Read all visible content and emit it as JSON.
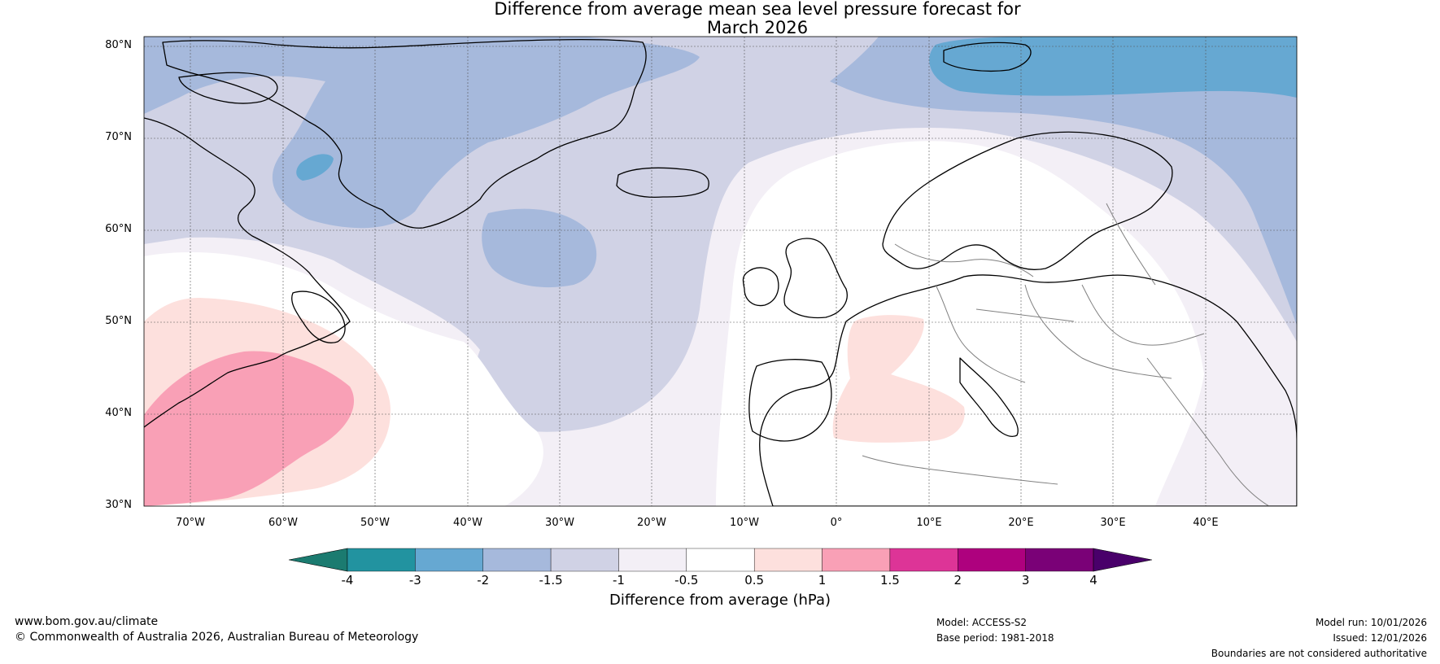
{
  "title": {
    "line1": "Difference from average mean sea level pressure forecast for",
    "line2": "March 2026"
  },
  "map": {
    "lat_labels": [
      "80°N",
      "70°N",
      "60°N",
      "50°N",
      "40°N",
      "30°N"
    ],
    "lon_labels": [
      "70°W",
      "60°W",
      "50°W",
      "40°W",
      "30°W",
      "20°W",
      "10°W",
      "0°",
      "10°E",
      "20°E",
      "30°E",
      "40°E"
    ],
    "extent": {
      "lon": [
        -75,
        50
      ],
      "lat": [
        30,
        80
      ]
    },
    "colors": {
      "coast": "#000000",
      "border": "#808080",
      "grid": "#555555"
    }
  },
  "legend": {
    "label": "Difference from average (hPa)",
    "ticks": [
      "-4",
      "-3",
      "-2",
      "-1.5",
      "-1",
      "-0.5",
      "0.5",
      "1",
      "1.5",
      "2",
      "3",
      "4"
    ],
    "colors": [
      "#1b7b70",
      "#2293a0",
      "#66a8d2",
      "#a6b9dc",
      "#d0d2e5",
      "#f3eff6",
      "#ffffff",
      "#fde0dd",
      "#f9a0b6",
      "#dd3497",
      "#ae017e",
      "#7a0177",
      "#49006a"
    ]
  },
  "footer": {
    "website": "www.bom.gov.au/climate",
    "copyright": "© Commonwealth of Australia 2026, Australian Bureau of Meteorology",
    "model": "Model: ACCESS-S2",
    "base_period": "Base period: 1981-2018",
    "model_run": "Model run: 10/01/2026",
    "issued": "Issued: 12/01/2026",
    "disclaimer": "Boundaries are not considered authoritative"
  }
}
